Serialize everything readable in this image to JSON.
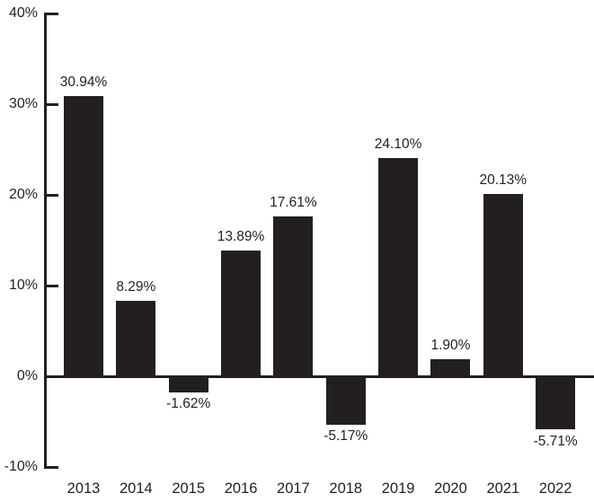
{
  "chart_data": {
    "type": "bar",
    "title": "",
    "xlabel": "",
    "ylabel": "",
    "categories": [
      "2013",
      "2014",
      "2015",
      "2016",
      "2017",
      "2018",
      "2019",
      "2020",
      "2021",
      "2022"
    ],
    "values": [
      30.94,
      8.29,
      -1.62,
      13.89,
      17.61,
      -5.17,
      24.1,
      1.9,
      20.13,
      -5.71
    ],
    "value_labels": [
      "30.94%",
      "8.29%",
      "-1.62%",
      "13.89%",
      "17.61%",
      "-5.17%",
      "24.10%",
      "1.90%",
      "20.13%",
      "-5.71%"
    ],
    "y_ticks": [
      40,
      30,
      20,
      10,
      0,
      -10
    ],
    "y_tick_labels": [
      "40%",
      "30%",
      "20%",
      "10%",
      "0%",
      "-10%"
    ],
    "ylim": [
      -10,
      40
    ],
    "grid": false,
    "legend": null,
    "bar_color": "#231f20",
    "axis_color": "#231f20",
    "text_color": "#231f20",
    "background_color": "#ffffff"
  }
}
